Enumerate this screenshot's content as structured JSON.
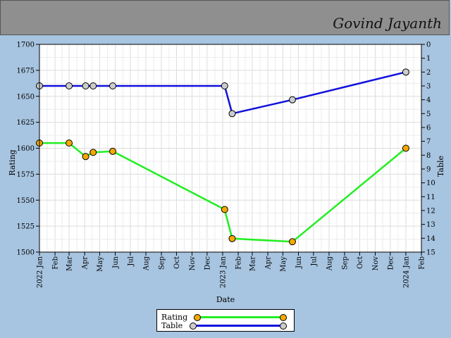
{
  "header": {
    "player_name": "Govind Jayanth"
  },
  "chart_data": {
    "type": "line",
    "xlabel": "Date",
    "ylabel": "Rating",
    "y2label": "Table",
    "ylim": [
      1500,
      1700
    ],
    "y2lim": [
      0,
      15
    ],
    "yticks": [
      1500,
      1525,
      1550,
      1575,
      1600,
      1625,
      1650,
      1675,
      1700
    ],
    "y2ticks": [
      0,
      1,
      2,
      3,
      4,
      5,
      6,
      7,
      8,
      9,
      10,
      11,
      12,
      13,
      14,
      15
    ],
    "x_tick_labels": [
      "2022 Jan",
      "Feb",
      "Mar",
      "Apr",
      "May",
      "Jun",
      "Jul",
      "Aug",
      "Sep",
      "Oct",
      "Nov",
      "Dec",
      "2023 Jan",
      "Feb",
      "Mar",
      "Apr",
      "May",
      "Jun",
      "Jul",
      "Aug",
      "Sep",
      "Oct",
      "Nov",
      "Dec",
      "2024 Jan",
      "Feb"
    ],
    "grid": true,
    "legend_position": "bottom-center",
    "series": [
      {
        "name": "Rating",
        "axis": "left",
        "line_color": "#22ee22",
        "marker_color": "#f5a800",
        "x": [
          "2022-01-01",
          "2022-03-01",
          "2022-04-03",
          "2022-04-18",
          "2022-05-27",
          "2023-01-05",
          "2023-01-20",
          "2023-05-20",
          "2024-01-01"
        ],
        "y": [
          1605,
          1605,
          1592,
          1596,
          1597,
          1541,
          1513,
          1510,
          1600
        ]
      },
      {
        "name": "Table",
        "axis": "right",
        "line_color": "#1010dd",
        "marker_color": "#cccccc",
        "x": [
          "2022-01-01",
          "2022-03-01",
          "2022-04-03",
          "2022-04-18",
          "2022-05-27",
          "2023-01-05",
          "2023-01-20",
          "2023-05-20",
          "2024-01-01"
        ],
        "y": [
          3,
          3,
          3,
          3,
          3,
          3,
          5,
          4,
          2
        ]
      }
    ]
  }
}
